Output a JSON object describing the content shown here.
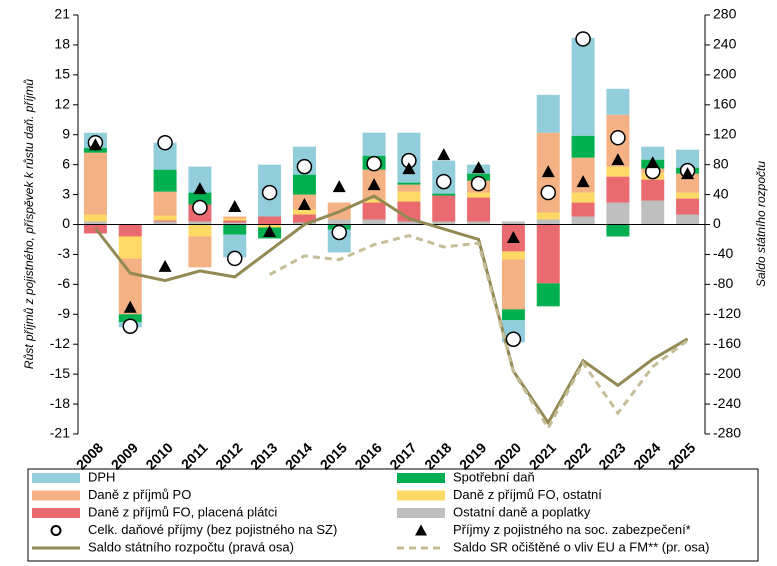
{
  "chart_data": {
    "type": "bar",
    "y_label": "Růst příjmů z pojistného, příspěvek k růstu daň. příjmů",
    "y2_label": "Saldo státního rozpočtu",
    "categories": [
      "2008",
      "2009",
      "2010",
      "2011",
      "2012",
      "2013",
      "2014",
      "2015",
      "2016",
      "2017",
      "2018",
      "2019",
      "2020",
      "2021",
      "2022",
      "2023",
      "2024",
      "2025"
    ],
    "ylim": [
      -21,
      21
    ],
    "yticks": [
      -21,
      -18,
      -15,
      -12,
      -9,
      -6,
      -3,
      0,
      3,
      6,
      9,
      12,
      15,
      18,
      21
    ],
    "y2lim": [
      -280,
      280
    ],
    "y2ticks": [
      -280,
      -240,
      -200,
      -160,
      -120,
      -80,
      -40,
      0,
      40,
      80,
      120,
      160,
      200,
      240,
      280
    ],
    "series": [
      {
        "name": "DPH",
        "type": "bar",
        "color": "#92cddc",
        "values": [
          1.5,
          -0.5,
          2.7,
          2.6,
          -2.3,
          5.2,
          2.8,
          -2.3,
          2.3,
          5.0,
          3.3,
          0.9,
          -2.2,
          3.8,
          9.8,
          2.6,
          1.3,
          1.8
        ]
      },
      {
        "name": "Spotřební daň",
        "type": "bar",
        "color": "#00b050",
        "values": [
          0.5,
          -0.8,
          2.2,
          1.2,
          -1.0,
          -1.1,
          2.0,
          -0.5,
          1.4,
          0.2,
          0.2,
          0.7,
          -1.1,
          -2.3,
          2.2,
          -1.2,
          0.9,
          0.6
        ]
      },
      {
        "name": "Daně z příjmů PO",
        "type": "bar",
        "color": "#f4b183",
        "values": [
          6.2,
          -5.6,
          2.4,
          -3.1,
          0.2,
          0,
          1.5,
          1.7,
          3.0,
          0.7,
          0,
          1.2,
          -5.0,
          8.0,
          3.5,
          5.2,
          0.4,
          1.9
        ]
      },
      {
        "name": "Daně z příjmů FO, ostatní",
        "type": "bar",
        "color": "#ffd966",
        "values": [
          0.7,
          -2.2,
          0.5,
          -1.2,
          0.2,
          -0.3,
          0.5,
          0,
          0.3,
          1.0,
          0,
          0.5,
          -0.8,
          0.7,
          1.0,
          1.0,
          0.7,
          0.6
        ]
      },
      {
        "name": "Daně z příjmů FO, placená plátci",
        "type": "bar",
        "color": "#e96a6f",
        "values": [
          -0.9,
          -1.2,
          0.1,
          1.7,
          0.2,
          0.8,
          0.8,
          0,
          1.7,
          2.0,
          2.6,
          2.4,
          -2.7,
          -5.9,
          1.4,
          2.6,
          2.1,
          1.6
        ]
      },
      {
        "name": "Ostatní daně a poplatky",
        "type": "bar",
        "color": "#bfbfbf",
        "values": [
          0.3,
          0,
          0.3,
          0.3,
          0.2,
          0,
          0.2,
          0.5,
          0.5,
          0.3,
          0.3,
          0.3,
          0.3,
          0.5,
          0.8,
          2.2,
          2.4,
          1.0
        ]
      },
      {
        "name": "Celk. daňové příjmy (bez pojistného na SZ)",
        "type": "scatter",
        "marker": "circle",
        "color": "#000000",
        "values": [
          8.2,
          -10.2,
          8.2,
          1.7,
          -3.4,
          3.2,
          5.8,
          -0.8,
          6.1,
          6.4,
          4.3,
          4.1,
          -11.5,
          3.2,
          18.6,
          8.7,
          5.3,
          5.4
        ]
      },
      {
        "name": "Příjmy z pojistného na soc. zabezpečení*",
        "type": "scatter",
        "marker": "triangle",
        "color": "#000000",
        "values": [
          8.0,
          -8.3,
          -4.2,
          3.6,
          1.8,
          -0.7,
          2.0,
          3.8,
          4.0,
          5.6,
          7.0,
          5.7,
          -1.3,
          5.3,
          4.3,
          6.5,
          6.2,
          5.1
        ]
      },
      {
        "name": "Saldo státního rozpočtu (pravá osa)",
        "type": "line",
        "axis": "y2",
        "color": "#938953",
        "values": [
          -5,
          -65,
          -75,
          -62,
          -70,
          -35,
          0,
          17,
          38,
          8,
          -6,
          -20,
          -196,
          -265,
          -182,
          -215,
          -180,
          -153
        ]
      },
      {
        "name": "Saldo SR očištěné o vliv EU a FM** (pr. osa)",
        "type": "line",
        "axis": "y2",
        "dash": true,
        "color": "#c4bd97",
        "values": [
          null,
          null,
          null,
          null,
          null,
          -67,
          -42,
          -47,
          -27,
          -15,
          -30,
          -25,
          -197,
          -272,
          -185,
          -252,
          -190,
          -155
        ]
      }
    ]
  }
}
